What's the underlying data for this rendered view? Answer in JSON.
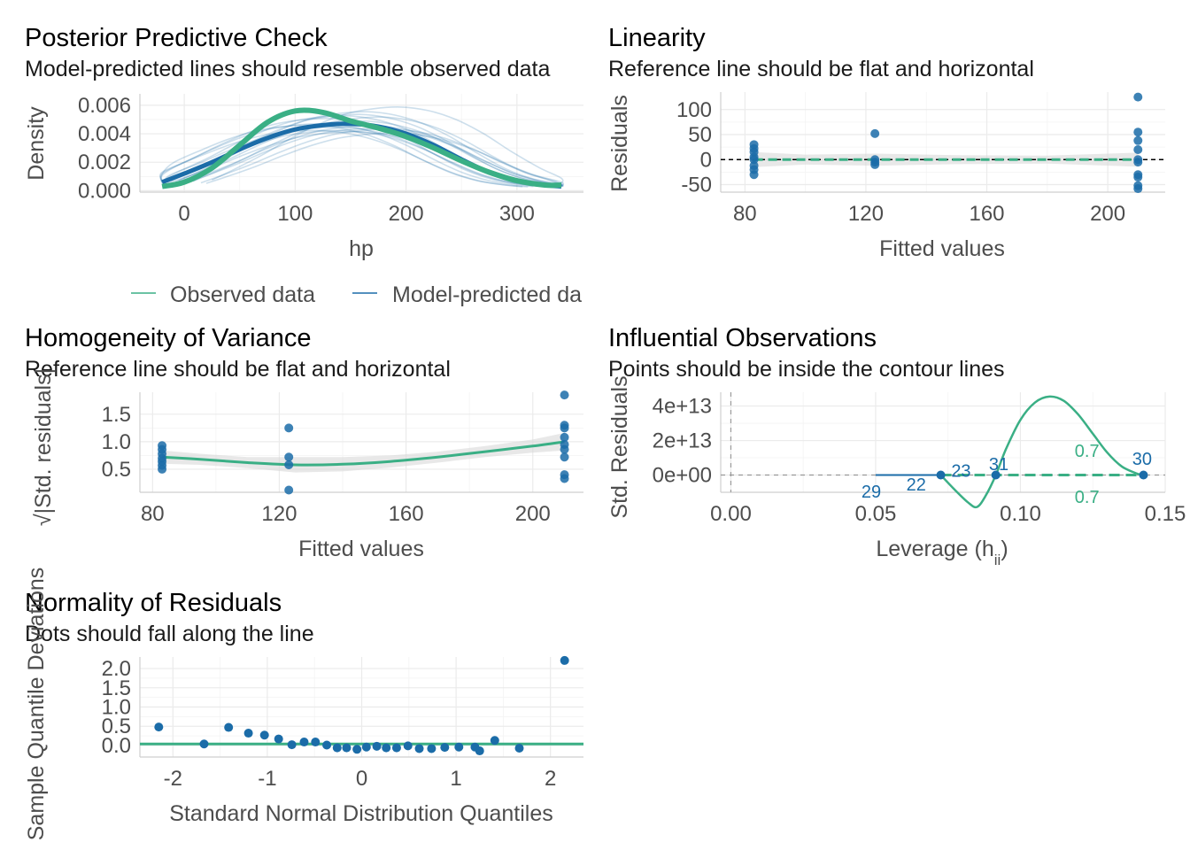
{
  "chart_data": [
    {
      "id": "ppc",
      "type": "line",
      "title": "Posterior Predictive Check",
      "subtitle": "Model-predicted lines should resemble observed data",
      "xlabel": "hp",
      "ylabel": "Density",
      "xlim": [
        -40,
        360
      ],
      "ylim": [
        -0.0001,
        0.0068
      ],
      "xticks": [
        0,
        100,
        200,
        300
      ],
      "xtick_labels": [
        "0",
        "100",
        "200",
        "300"
      ],
      "yticks": [
        0,
        0.002,
        0.004,
        0.006
      ],
      "ytick_labels": [
        "0.000",
        "0.002",
        "0.004",
        "0.006"
      ],
      "legend": {
        "position": "bottom",
        "entries": [
          {
            "label": "Observed data",
            "color": "#3aaf85"
          },
          {
            "label": "Model-predicted da",
            "color": "#1b6ca8"
          }
        ]
      },
      "series": [
        {
          "name": "Observed data",
          "color": "#3aaf85",
          "x": [
            -20,
            0,
            25,
            50,
            75,
            100,
            125,
            150,
            175,
            200,
            225,
            250,
            275,
            300,
            325,
            340
          ],
          "y": [
            0.0003,
            0.0006,
            0.0016,
            0.0032,
            0.0048,
            0.0056,
            0.0055,
            0.0049,
            0.0044,
            0.0038,
            0.003,
            0.0021,
            0.0013,
            0.0007,
            0.0004,
            0.0004
          ]
        },
        {
          "name": "Model-predicted data",
          "color": "#1b6ca8",
          "x": [
            -20,
            0,
            25,
            50,
            75,
            100,
            125,
            150,
            175,
            200,
            225,
            250,
            275,
            300,
            325,
            340
          ],
          "y": [
            0.0006,
            0.0012,
            0.002,
            0.0029,
            0.0037,
            0.0043,
            0.0046,
            0.0047,
            0.0045,
            0.004,
            0.0032,
            0.0022,
            0.0013,
            0.0007,
            0.0004,
            0.0003
          ]
        }
      ],
      "draws": [
        {
          "shift": -30,
          "scale": 0.9
        },
        {
          "shift": -20,
          "scale": 1.08
        },
        {
          "shift": -12,
          "scale": 0.95
        },
        {
          "shift": -5,
          "scale": 1.12
        },
        {
          "shift": 5,
          "scale": 0.88
        },
        {
          "shift": 12,
          "scale": 1.04
        },
        {
          "shift": 20,
          "scale": 0.97
        },
        {
          "shift": 28,
          "scale": 1.1
        },
        {
          "shift": 35,
          "scale": 0.92
        },
        {
          "shift": -25,
          "scale": 1.0
        },
        {
          "shift": 15,
          "scale": 1.18
        },
        {
          "shift": 40,
          "scale": 0.86
        },
        {
          "shift": 0,
          "scale": 1.02
        },
        {
          "shift": -8,
          "scale": 0.9
        },
        {
          "shift": 8,
          "scale": 1.14
        },
        {
          "shift": 45,
          "scale": 1.25
        },
        {
          "shift": -35,
          "scale": 0.98
        },
        {
          "shift": 22,
          "scale": 0.93
        }
      ]
    },
    {
      "id": "linearity",
      "type": "scatter",
      "title": "Linearity",
      "subtitle": "Reference line should be flat and horizontal",
      "xlabel": "Fitted values",
      "ylabel": "Residuals",
      "xlim": [
        72,
        219
      ],
      "ylim": [
        -65,
        135
      ],
      "xticks": [
        80,
        120,
        160,
        200
      ],
      "xtick_labels": [
        "80",
        "120",
        "160",
        "200"
      ],
      "yticks": [
        -50,
        0,
        50,
        100
      ],
      "ytick_labels": [
        "-50",
        "0",
        "50",
        "100"
      ],
      "points": [
        {
          "x": 83,
          "y": 30
        },
        {
          "x": 83,
          "y": 22
        },
        {
          "x": 83,
          "y": 15
        },
        {
          "x": 83,
          "y": 5
        },
        {
          "x": 83,
          "y": 0
        },
        {
          "x": 83,
          "y": -12
        },
        {
          "x": 83,
          "y": -20
        },
        {
          "x": 83,
          "y": -30
        },
        {
          "x": 123,
          "y": 52
        },
        {
          "x": 123,
          "y": 0
        },
        {
          "x": 123,
          "y": -5
        },
        {
          "x": 123,
          "y": -10
        },
        {
          "x": 210,
          "y": 125
        },
        {
          "x": 210,
          "y": 55
        },
        {
          "x": 210,
          "y": 38
        },
        {
          "x": 210,
          "y": 20
        },
        {
          "x": 210,
          "y": 0
        },
        {
          "x": 210,
          "y": -5
        },
        {
          "x": 210,
          "y": -30
        },
        {
          "x": 210,
          "y": -35
        },
        {
          "x": 210,
          "y": -52
        },
        {
          "x": 210,
          "y": -58
        }
      ],
      "fit": {
        "x": [
          83,
          123,
          166,
          210
        ],
        "y": [
          0,
          0,
          0,
          0
        ]
      }
    },
    {
      "id": "homogeneity",
      "type": "scatter",
      "title": "Homogeneity of Variance",
      "subtitle": "Reference line should be flat and horizontal",
      "xlabel": "Fitted values",
      "ylabel": "√|Std. residuals|",
      "xlim": [
        76,
        216
      ],
      "ylim": [
        0.08,
        1.9
      ],
      "xticks": [
        80,
        120,
        160,
        200
      ],
      "xtick_labels": [
        "80",
        "120",
        "160",
        "200"
      ],
      "yticks": [
        0.5,
        1.0,
        1.5
      ],
      "ytick_labels": [
        "0.5",
        "1.0",
        "1.5"
      ],
      "points": [
        {
          "x": 83,
          "y": 0.93
        },
        {
          "x": 83,
          "y": 0.86
        },
        {
          "x": 83,
          "y": 0.78
        },
        {
          "x": 83,
          "y": 0.7
        },
        {
          "x": 83,
          "y": 0.64
        },
        {
          "x": 83,
          "y": 0.57
        },
        {
          "x": 83,
          "y": 0.5
        },
        {
          "x": 123,
          "y": 1.25
        },
        {
          "x": 123,
          "y": 0.72
        },
        {
          "x": 123,
          "y": 0.58
        },
        {
          "x": 123,
          "y": 0.12
        },
        {
          "x": 210,
          "y": 1.85
        },
        {
          "x": 210,
          "y": 1.3
        },
        {
          "x": 210,
          "y": 1.25
        },
        {
          "x": 210,
          "y": 1.08
        },
        {
          "x": 210,
          "y": 0.95
        },
        {
          "x": 210,
          "y": 0.86
        },
        {
          "x": 210,
          "y": 0.72
        },
        {
          "x": 210,
          "y": 0.4
        },
        {
          "x": 210,
          "y": 0.33
        }
      ],
      "fit": {
        "x": [
          83,
          95,
          110,
          125,
          140,
          155,
          170,
          185,
          200,
          210
        ],
        "y": [
          0.72,
          0.68,
          0.62,
          0.58,
          0.59,
          0.64,
          0.72,
          0.82,
          0.92,
          1.0
        ]
      }
    },
    {
      "id": "influential",
      "type": "scatter",
      "title": "Influential Observations",
      "subtitle": "Points should be inside the contour lines",
      "xlabel": "Leverage (h",
      "xlabel_sub": "ii",
      "ylabel": "Std. Residuals",
      "xlim": [
        -0.0035,
        0.15
      ],
      "ylim": [
        -10000000000000.0,
        48000000000000.0
      ],
      "xticks": [
        0.0,
        0.05,
        0.1,
        0.15
      ],
      "xtick_labels": [
        "0.00",
        "0.05",
        "0.10",
        "0.15"
      ],
      "yticks": [
        0,
        20000000000000.0,
        40000000000000.0
      ],
      "ytick_labels": [
        "0e+00",
        "2e+13",
        "4e+13"
      ],
      "points": [
        {
          "x": 0.0725,
          "y": 0,
          "label": "23"
        },
        {
          "x": 0.0915,
          "y": 0,
          "label": "31"
        },
        {
          "x": 0.1425,
          "y": 0,
          "label": "30"
        }
      ],
      "point_labels": [
        {
          "label": "29",
          "x": 0.0485,
          "y": -9500000000000.0
        },
        {
          "label": "22",
          "x": 0.064,
          "y": -5500000000000.0
        },
        {
          "label": "23",
          "x": 0.0795,
          "y": 2500000000000.0
        },
        {
          "label": "31",
          "x": 0.0925,
          "y": 6500000000000.0
        },
        {
          "label": "30",
          "x": 0.142,
          "y": 9500000000000.0
        }
      ],
      "contour_labels": [
        {
          "label": "0.7",
          "x": 0.123,
          "y": 14000000000000.0
        },
        {
          "label": "0.7",
          "x": 0.123,
          "y": -12500000000000.0
        }
      ],
      "fit": {
        "x": [
          0.0,
          0.0725,
          0.0915,
          0.1425
        ],
        "y": [
          0,
          0,
          0,
          0
        ]
      },
      "contour": {
        "x": [
          0.0725,
          0.077,
          0.082,
          0.085,
          0.088,
          0.0915,
          0.095,
          0.1,
          0.105,
          0.11,
          0.115,
          0.12,
          0.125,
          0.13,
          0.135,
          0.14,
          0.1425
        ],
        "y": [
          0,
          -8000000000000.0,
          -16000000000000.0,
          -18500000000000.0,
          -12000000000000.0,
          0,
          15000000000000.0,
          32000000000000.0,
          42000000000000.0,
          45500000000000.0,
          43000000000000.0,
          35000000000000.0,
          24000000000000.0,
          13000000000000.0,
          5000000000000.0,
          1000000000000.0,
          0
        ]
      }
    },
    {
      "id": "normality",
      "type": "scatter",
      "title": "Normality of Residuals",
      "subtitle": "Dots should fall along the line",
      "xlabel": "Standard Normal Distribution Quantiles",
      "ylabel": "Sample Quantile Deviations",
      "xlim": [
        -2.35,
        2.35
      ],
      "ylim": [
        -0.3,
        2.3
      ],
      "xticks": [
        -2,
        -1,
        0,
        1,
        2
      ],
      "xtick_labels": [
        "-2",
        "-1",
        "0",
        "1",
        "2"
      ],
      "yticks": [
        0.0,
        0.5,
        1.0,
        1.5,
        2.0
      ],
      "ytick_labels": [
        "0.0",
        "0.5",
        "1.0",
        "1.5",
        "2.0"
      ],
      "points": [
        {
          "x": -2.15,
          "y": 0.48
        },
        {
          "x": -1.67,
          "y": 0.04
        },
        {
          "x": -1.41,
          "y": 0.47
        },
        {
          "x": -1.2,
          "y": 0.32
        },
        {
          "x": -1.03,
          "y": 0.27
        },
        {
          "x": -0.88,
          "y": 0.17
        },
        {
          "x": -0.74,
          "y": 0.02
        },
        {
          "x": -0.61,
          "y": 0.09
        },
        {
          "x": -0.49,
          "y": 0.09
        },
        {
          "x": -0.37,
          "y": 0.01
        },
        {
          "x": -0.26,
          "y": -0.06
        },
        {
          "x": -0.16,
          "y": -0.06
        },
        {
          "x": -0.05,
          "y": -0.1
        },
        {
          "x": 0.05,
          "y": -0.04
        },
        {
          "x": 0.16,
          "y": -0.02
        },
        {
          "x": 0.26,
          "y": -0.06
        },
        {
          "x": 0.37,
          "y": -0.06
        },
        {
          "x": 0.49,
          "y": -0.01
        },
        {
          "x": 0.61,
          "y": -0.08
        },
        {
          "x": 0.74,
          "y": -0.08
        },
        {
          "x": 0.88,
          "y": -0.05
        },
        {
          "x": 1.03,
          "y": -0.04
        },
        {
          "x": 1.2,
          "y": -0.04
        },
        {
          "x": 1.41,
          "y": 0.13
        },
        {
          "x": 1.67,
          "y": -0.07
        },
        {
          "x": 2.15,
          "y": 2.21
        },
        {
          "x": 1.25,
          "y": -0.14
        }
      ],
      "fit": {
        "x": [
          -2.35,
          2.35
        ],
        "y": [
          0.04,
          0.04
        ]
      }
    }
  ],
  "colors": {
    "observed": "#3aaf85",
    "predicted": "#1b6ca8",
    "ribbon": "#d9d9d9",
    "grid": "#ebebeb"
  }
}
